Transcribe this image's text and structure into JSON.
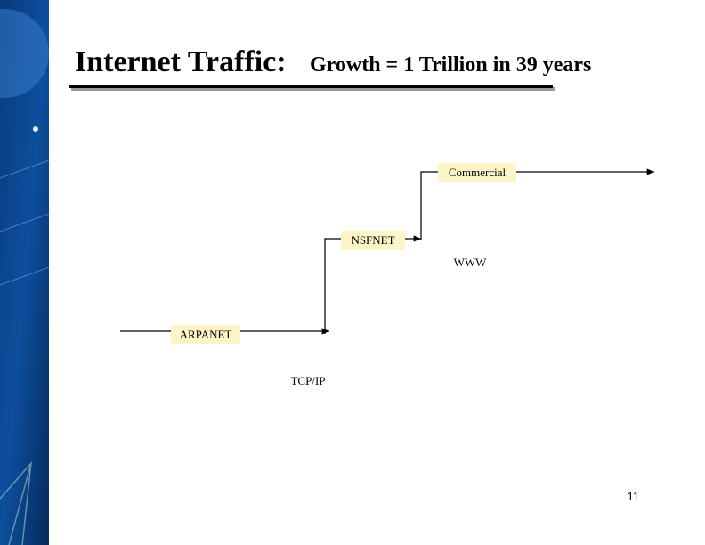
{
  "header": {
    "title": "Internet Traffic:",
    "subtitle": "Growth = 1 Trillion in 39 years"
  },
  "nodes": [
    {
      "label": "ARPANET"
    },
    {
      "label": "NSFNET"
    },
    {
      "label": "Commercial"
    }
  ],
  "annotations": [
    {
      "label": "TCP/IP"
    },
    {
      "label": "WWW"
    }
  ],
  "footer": {
    "page_number": "11"
  }
}
